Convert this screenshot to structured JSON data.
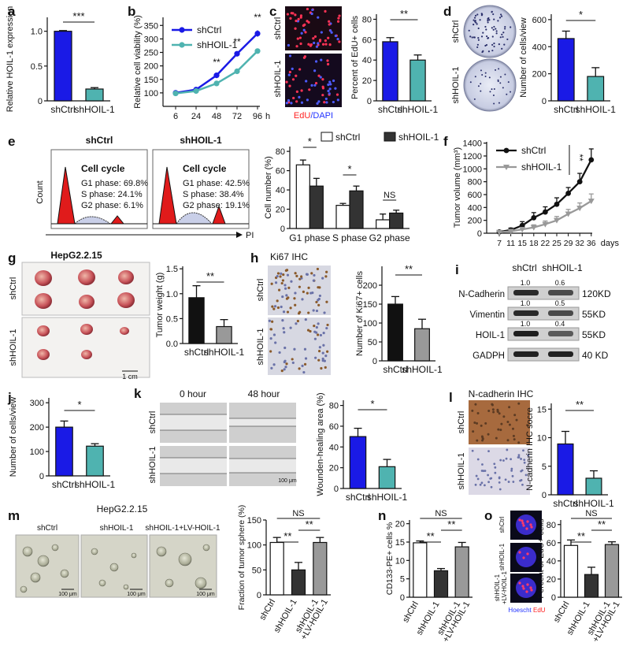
{
  "chart_data": [
    {
      "id": "a",
      "type": "bar",
      "panel_label": "a",
      "ylabel": "Relative HOIL-1 expression",
      "ylim": [
        0,
        1.2
      ],
      "yticks": [
        0,
        0.5,
        1.0
      ],
      "yticklabels": [
        "0",
        "0.5",
        "1.0"
      ],
      "categories": [
        "shCtrl",
        "shHOIL-1"
      ],
      "values": [
        1.0,
        0.17
      ],
      "errors": [
        0.01,
        0.02
      ],
      "colors": [
        "#1a1ae6",
        "#4fb3b0"
      ],
      "significance": [
        {
          "from": 0,
          "to": 1,
          "label": "***"
        }
      ]
    },
    {
      "id": "b",
      "type": "line",
      "panel_label": "b",
      "xlabel": "h",
      "ylabel": "Relative cell viability (%)",
      "x": [
        6,
        24,
        48,
        72,
        96
      ],
      "xticklabels": [
        "6",
        "24",
        "48",
        "72",
        "96"
      ],
      "ylim": [
        50,
        380
      ],
      "yticks": [
        100,
        150,
        200,
        250,
        300,
        350
      ],
      "series": [
        {
          "name": "shCtrl",
          "values": [
            100,
            112,
            165,
            245,
            320
          ],
          "errors": [
            3,
            4,
            6,
            8,
            12
          ],
          "color": "#1a1ae6"
        },
        {
          "name": "shHOIL-1",
          "values": [
            98,
            107,
            135,
            180,
            255
          ],
          "errors": [
            3,
            4,
            5,
            6,
            8
          ],
          "color": "#4fb3b0"
        }
      ],
      "annotations": [
        "**",
        "**",
        "**"
      ]
    },
    {
      "id": "c",
      "type": "bar",
      "panel_label": "c",
      "ylabel": "Percent of EdU+ cells",
      "ylim": [
        0,
        85
      ],
      "yticks": [
        0,
        20,
        40,
        60,
        80
      ],
      "categories": [
        "shCtrl",
        "shHOIL-1"
      ],
      "values": [
        58,
        40
      ],
      "errors": [
        4,
        5
      ],
      "colors": [
        "#1a1ae6",
        "#4fb3b0"
      ],
      "significance": [
        {
          "from": 0,
          "to": 1,
          "label": "**"
        }
      ],
      "image_labels": [
        "shCtrl",
        "shHOIL-1"
      ],
      "stain_labels": [
        "EdU",
        "/DAPI"
      ]
    },
    {
      "id": "d",
      "type": "bar",
      "panel_label": "d",
      "ylabel": "Number of cells/view",
      "ylim": [
        0,
        640
      ],
      "yticks": [
        0,
        200,
        400,
        600
      ],
      "categories": [
        "shCtrl",
        "shHOIL-1"
      ],
      "values": [
        460,
        180
      ],
      "errors": [
        55,
        65
      ],
      "colors": [
        "#1a1ae6",
        "#4fb3b0"
      ],
      "significance": [
        {
          "from": 0,
          "to": 1,
          "label": "*"
        }
      ],
      "image_labels": [
        "shCtrl",
        "shHOIL-1"
      ]
    },
    {
      "id": "e",
      "type": "bar",
      "panel_label": "e",
      "ylabel": "Cell number (%)",
      "ylim": [
        0,
        85
      ],
      "yticks": [
        0,
        20,
        40,
        60,
        80
      ],
      "categories": [
        "G1 phase",
        "S phase",
        "G2 phase"
      ],
      "series": [
        {
          "name": "shCtrl",
          "values": [
            66,
            24,
            9
          ],
          "errors": [
            5,
            2,
            6
          ],
          "color": "#ffffff"
        },
        {
          "name": "shHOIL-1",
          "values": [
            44,
            39,
            16
          ],
          "errors": [
            8,
            5,
            3
          ],
          "color": "#333333"
        }
      ],
      "significance": [
        "*",
        "*",
        "NS"
      ],
      "flow": {
        "shctrl": {
          "title": "shCtrl",
          "heading": "Cell cycle",
          "lines": [
            "G1 phase: 69.8%",
            "S phase: 24.1%",
            "G2 phase: 6.1%"
          ]
        },
        "shhoil": {
          "title": "shHOIL-1",
          "heading": "Cell cycle",
          "lines": [
            "G1 phase: 42.5%",
            "S phase: 38.4%",
            "G2 phase: 19.1%"
          ]
        },
        "xlabel": "PI",
        "ylabel": "Count"
      }
    },
    {
      "id": "f",
      "type": "line",
      "panel_label": "f",
      "xlabel": "days",
      "ylabel": "Tumor volume (mm³)",
      "x": [
        7,
        11,
        15,
        18,
        22,
        25,
        29,
        32,
        36
      ],
      "xticklabels": [
        "7",
        "11",
        "15",
        "18",
        "22",
        "25",
        "29",
        "32",
        "36"
      ],
      "ylim": [
        0,
        1420
      ],
      "yticks": [
        0,
        200,
        400,
        600,
        800,
        1000,
        1200,
        1400
      ],
      "series": [
        {
          "name": "shCtrl",
          "values": [
            20,
            50,
            120,
            240,
            330,
            450,
            620,
            800,
            1140
          ],
          "errors": [
            10,
            30,
            60,
            80,
            80,
            100,
            90,
            130,
            170
          ],
          "color": "#111111"
        },
        {
          "name": "shHOIL-1",
          "values": [
            15,
            30,
            60,
            90,
            140,
            200,
            300,
            390,
            500
          ],
          "errors": [
            10,
            20,
            30,
            40,
            50,
            60,
            70,
            80,
            110
          ],
          "color": "#999999"
        }
      ],
      "annotations": [
        "**"
      ]
    },
    {
      "id": "g",
      "type": "bar",
      "panel_label": "g",
      "title": "HepG2.2.15",
      "ylabel": "Tumor weight (g)",
      "ylim": [
        0,
        1.55
      ],
      "yticks": [
        0,
        0.5,
        1.0,
        1.5
      ],
      "yticklabels": [
        "0.0",
        "0.5",
        "1.0",
        "1.5"
      ],
      "categories": [
        "shCtrl",
        "shHOIL-1"
      ],
      "values": [
        0.92,
        0.34
      ],
      "errors": [
        0.24,
        0.14
      ],
      "colors": [
        "#111111",
        "#999999"
      ],
      "significance": [
        {
          "from": 0,
          "to": 1,
          "label": "**"
        }
      ],
      "image_labels": [
        "shCtrl",
        "shHOIL-1"
      ],
      "scale": "1 cm"
    },
    {
      "id": "h",
      "type": "bar",
      "panel_label": "h",
      "title": "Ki67 IHC",
      "ylabel": "Number of Ki67+ cells",
      "ylim": [
        0,
        250
      ],
      "yticks": [
        0,
        50,
        100,
        150,
        200
      ],
      "categories": [
        "shCtrl",
        "shHOIL-1"
      ],
      "values": [
        150,
        85
      ],
      "errors": [
        20,
        25
      ],
      "colors": [
        "#111111",
        "#999999"
      ],
      "significance": [
        {
          "from": 0,
          "to": 1,
          "label": "**"
        }
      ],
      "image_labels": [
        "shCtrl",
        "shHOIL-1"
      ]
    },
    {
      "id": "j",
      "type": "bar",
      "panel_label": "j",
      "ylabel": "Number of cells/view",
      "ylim": [
        0,
        320
      ],
      "yticks": [
        0,
        100,
        200,
        300
      ],
      "categories": [
        "shCtrl",
        "shHOIL-1"
      ],
      "values": [
        200,
        122
      ],
      "errors": [
        25,
        10
      ],
      "colors": [
        "#1a1ae6",
        "#4fb3b0"
      ],
      "significance": [
        {
          "from": 0,
          "to": 1,
          "label": "*"
        }
      ]
    },
    {
      "id": "k",
      "type": "bar",
      "panel_label": "k",
      "ylabel": "Wounden-healing area (%)",
      "ylim": [
        0,
        85
      ],
      "yticks": [
        0,
        20,
        40,
        60,
        80
      ],
      "categories": [
        "shCtrl",
        "shHOIL-1"
      ],
      "values": [
        50,
        21
      ],
      "errors": [
        8,
        7
      ],
      "colors": [
        "#1a1ae6",
        "#4fb3b0"
      ],
      "significance": [
        {
          "from": 0,
          "to": 1,
          "label": "*"
        }
      ],
      "image_labels": [
        "shCtrl",
        "shHOIL-1"
      ],
      "time_labels": [
        "0 hour",
        "48 hour"
      ],
      "scale": "100 μm"
    },
    {
      "id": "l",
      "type": "bar",
      "panel_label": "l",
      "title": "N-cadherin IHC",
      "ylabel": "N-cadherin IHC socre",
      "ylim": [
        0,
        16
      ],
      "yticks": [
        0,
        5,
        10,
        15
      ],
      "categories": [
        "shCtrl",
        "shHOIL-1"
      ],
      "values": [
        8.9,
        2.9
      ],
      "errors": [
        2.2,
        1.3
      ],
      "colors": [
        "#1a1ae6",
        "#4fb3b0"
      ],
      "significance": [
        {
          "from": 0,
          "to": 1,
          "label": "**"
        }
      ],
      "image_labels": [
        "shCtrl",
        "shHOIL-1"
      ]
    },
    {
      "id": "m",
      "type": "bar",
      "panel_label": "m",
      "title": "HepG2.2.15",
      "ylabel": "Fraction of tumor sphere (%)",
      "ylim": [
        0,
        150
      ],
      "yticks": [
        0,
        50,
        100,
        150
      ],
      "categories": [
        "shCtrl",
        "shHOIL-1",
        "shHOIL-1 +LV-HOIL-1"
      ],
      "values": [
        105,
        50,
        105
      ],
      "errors": [
        10,
        15,
        10
      ],
      "colors": [
        "#ffffff",
        "#333333",
        "#999999"
      ],
      "significance": [
        {
          "from": 0,
          "to": 1,
          "label": "**"
        },
        {
          "from": 1,
          "to": 2,
          "label": "**"
        },
        {
          "from": 0,
          "to": 2,
          "label": "NS"
        }
      ],
      "image_labels": [
        "shCtrl",
        "shHOIL-1",
        "shHOIL-1+LV-HOIL-1"
      ],
      "scale": "100 μm"
    },
    {
      "id": "n",
      "type": "bar",
      "panel_label": "n",
      "ylabel": "CD133-PE+ cells %",
      "ylim": [
        0,
        21
      ],
      "yticks": [
        0,
        5,
        10,
        15,
        20
      ],
      "categories": [
        "shCtrl",
        "shHOIL-1",
        "shHOIL-1 +LV-HOIL-1"
      ],
      "values": [
        14.8,
        7.2,
        13.7
      ],
      "errors": [
        0.5,
        0.6,
        1.2
      ],
      "colors": [
        "#ffffff",
        "#333333",
        "#999999"
      ],
      "significance": [
        {
          "from": 0,
          "to": 1,
          "label": "**"
        },
        {
          "from": 1,
          "to": 2,
          "label": "**"
        },
        {
          "from": 0,
          "to": 2,
          "label": "NS"
        }
      ]
    },
    {
      "id": "o",
      "type": "bar",
      "panel_label": "o",
      "ylabel": "Percent of EdU+ cells",
      "ylim": [
        0,
        85
      ],
      "yticks": [
        0,
        20,
        40,
        60,
        80
      ],
      "categories": [
        "shCtrl",
        "shHOIL-1",
        "shHOIL-1 +LV-HOIL-1"
      ],
      "values": [
        57,
        25,
        58
      ],
      "errors": [
        6,
        8,
        3
      ],
      "colors": [
        "#ffffff",
        "#333333",
        "#999999"
      ],
      "significance": [
        {
          "from": 0,
          "to": 1,
          "label": "**"
        },
        {
          "from": 1,
          "to": 2,
          "label": "**"
        },
        {
          "from": 0,
          "to": 2,
          "label": "NS"
        }
      ],
      "image_labels": [
        "shCtrl",
        "shHOIL-1",
        "shHOIL-1 +LV-HOIL-1"
      ],
      "stain_labels": [
        "Hoescht",
        "EdU"
      ]
    }
  ],
  "blot": {
    "panel_label": "i",
    "lanes": [
      "shCtrl",
      "shHOIL-1"
    ],
    "rows": [
      {
        "name": "N-Cadherin",
        "quant": [
          "1.0",
          "0.6"
        ],
        "kd": "120KD"
      },
      {
        "name": "Vimentin",
        "quant": [
          "1.0",
          "0.5"
        ],
        "kd": "55KD"
      },
      {
        "name": "HOIL-1",
        "quant": [
          "1.0",
          "0.4"
        ],
        "kd": "55KD"
      },
      {
        "name": "GADPH",
        "quant": [],
        "kd": "40 KD"
      }
    ]
  }
}
